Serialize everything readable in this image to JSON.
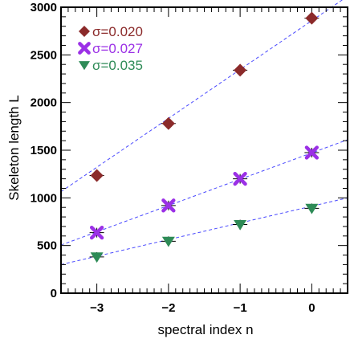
{
  "chart_data": {
    "type": "scatter",
    "xlabel": "spectral index n",
    "ylabel": "Skeleton length L",
    "xlim": [
      -3.5,
      0.5
    ],
    "ylim": [
      0,
      3000
    ],
    "x_ticks": [
      -3,
      -2,
      -1,
      0
    ],
    "x_tick_labels": [
      "−3",
      "−2",
      "−1",
      "0"
    ],
    "y_ticks": [
      0,
      500,
      1000,
      1500,
      2000,
      2500,
      3000
    ],
    "y_tick_labels": [
      "0",
      "500",
      "1000",
      "1500",
      "2000",
      "2500",
      "3000"
    ],
    "grid": false,
    "legend_placement": "top-left",
    "series": [
      {
        "name": "σ=0.020",
        "marker": "diamond",
        "color": "#8b2a2a",
        "x": [
          -3,
          -2,
          -1,
          0
        ],
        "y": [
          1235,
          1780,
          2340,
          2885
        ],
        "fit_line": [
          [
            -3.5,
            1065
          ],
          [
            0.5,
            3115
          ]
        ]
      },
      {
        "name": "σ=0.027",
        "marker": "x",
        "color": "#9b30e6",
        "x": [
          -3,
          -2,
          -1,
          0
        ],
        "y": [
          635,
          920,
          1200,
          1475
        ],
        "fit_line": [
          [
            -3.5,
            505
          ],
          [
            0.5,
            1610
          ]
        ]
      },
      {
        "name": "σ=0.035",
        "marker": "triangle-down",
        "color": "#2e8b57",
        "x": [
          -3,
          -2,
          -1,
          0
        ],
        "y": [
          380,
          545,
          720,
          890
        ],
        "fit_line": [
          [
            -3.5,
            300
          ],
          [
            0.5,
            1000
          ]
        ]
      }
    ],
    "fit_line_color": "#4a4aff"
  }
}
